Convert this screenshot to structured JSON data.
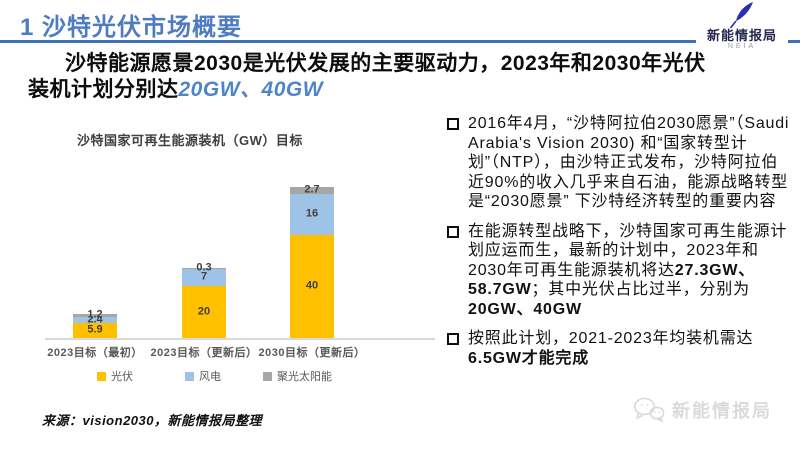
{
  "header": {
    "title": "1 沙特光伏市场概要",
    "brand": {
      "name": "新能情报局",
      "abbr": "NEIA"
    }
  },
  "headline": {
    "text": "沙特能源愿景2030是光伏发展的主要驱动力，2023年和2030年光伏装机计划分别达",
    "highlight": "20GW、40GW"
  },
  "chart_data": {
    "type": "bar",
    "stacked": true,
    "title": "沙特国家可再生能源装机（GW）目标",
    "unit": "GW",
    "categories": [
      "2023目标（最初）",
      "2023目标（更新后）",
      "2030目标（更新后）"
    ],
    "series": [
      {
        "name": "光伏",
        "color": "#FFC000",
        "values": [
          5.9,
          20,
          40
        ]
      },
      {
        "name": "风电",
        "color": "#9DC3E6",
        "values": [
          2.4,
          7,
          16
        ]
      },
      {
        "name": "聚光太阳能",
        "color": "#A6A6A6",
        "values": [
          1.2,
          0.3,
          2.7
        ]
      }
    ],
    "totals": [
      9.5,
      27.3,
      58.7
    ],
    "ylim": [
      0,
      60
    ],
    "grid": false,
    "legend_position": "bottom",
    "value_labels": true
  },
  "bullets": [
    {
      "segments": [
        {
          "text": "2016年4月，“沙特阿拉伯2030愿景”（Saudi Arabia's Vision 2030) 和“国家转型计划”（NTP），由沙特正式发布，沙特阿拉伯近90%的收入几乎来自石油，能源战略转型是“2030愿景” 下沙特经济转型的重要内容",
          "bold": false
        }
      ]
    },
    {
      "segments": [
        {
          "text": "在能源转型战略下，沙特国家可再生能源计划应运而生，最新的计划中，2023年和2030年可再生能源装机将达",
          "bold": false
        },
        {
          "text": "27.3GW、58.7GW",
          "bold": true
        },
        {
          "text": "；其中光伏占比过半，分别为",
          "bold": false
        },
        {
          "text": "20GW、40GW",
          "bold": true
        }
      ]
    },
    {
      "segments": [
        {
          "text": "按照此计划，2021-2023年均装机需达",
          "bold": false
        },
        {
          "text": "6.5GW才能完成",
          "bold": true
        }
      ]
    }
  ],
  "source": "来源：vision2030，新能情报局整理",
  "watermark": {
    "text": "新能情报局"
  },
  "colors": {
    "accent_blue": "#4E7CC0",
    "rule_blue": "#3F72B4",
    "highlight_blue": "#4D86C8",
    "logo_blue": "#2B2FB0",
    "pv_yellow": "#FFC000",
    "wind_blue": "#9DC3E6",
    "csp_gray": "#A6A6A6",
    "watermark_gray": "#D9D9D9"
  }
}
